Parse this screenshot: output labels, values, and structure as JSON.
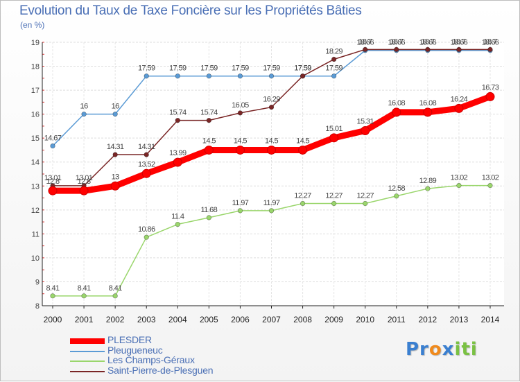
{
  "chart_data": {
    "type": "line",
    "title": "Evolution du Taux de Taxe Foncière sur les Propriétés Bâties",
    "ylabel": "(en %)",
    "xlabel": "",
    "ylim": [
      8,
      19
    ],
    "yticks": [
      8,
      9,
      10,
      11,
      12,
      13,
      14,
      15,
      16,
      17,
      18,
      19
    ],
    "categories": [
      "2000",
      "2001",
      "2002",
      "2003",
      "2004",
      "2005",
      "2006",
      "2007",
      "2008",
      "2009",
      "2010",
      "2011",
      "2012",
      "2013",
      "2014"
    ],
    "series": [
      {
        "name": "Pleugueneuc",
        "color": "#5b9bd5",
        "values": [
          14.67,
          16,
          16,
          17.59,
          17.59,
          17.59,
          17.59,
          17.59,
          17.59,
          17.59,
          18.66,
          18.66,
          18.66,
          18.66,
          18.66
        ]
      },
      {
        "name": "Les Champs-Géraux",
        "color": "#9ad66c",
        "values": [
          8.41,
          8.41,
          8.41,
          10.86,
          11.4,
          11.68,
          11.97,
          11.97,
          12.27,
          12.27,
          12.27,
          12.58,
          12.89,
          13.02,
          13.02
        ]
      },
      {
        "name": "Saint-Pierre-de-Plesguen",
        "color": "#7a2626",
        "values": [
          13.01,
          13.01,
          14.31,
          14.31,
          15.74,
          15.74,
          16.05,
          16.29,
          17.59,
          18.29,
          18.7,
          18.7,
          18.7,
          18.7,
          18.7
        ]
      },
      {
        "name": "PLESDER",
        "color": "#ff0000",
        "values": [
          12.8,
          12.8,
          13,
          13.52,
          13.99,
          14.5,
          14.5,
          14.5,
          14.5,
          15.01,
          15.31,
          16.08,
          16.08,
          16.24,
          16.73
        ]
      }
    ],
    "legend": [
      "PLESDER",
      "Pleugueneuc",
      "Les Champs-Géraux",
      "Saint-Pierre-de-Plesguen"
    ],
    "legend_position": "bottom-left"
  },
  "logo": {
    "text_1": "Pr",
    "text_2": "o",
    "text_3": "x",
    "text_4": "iti"
  }
}
